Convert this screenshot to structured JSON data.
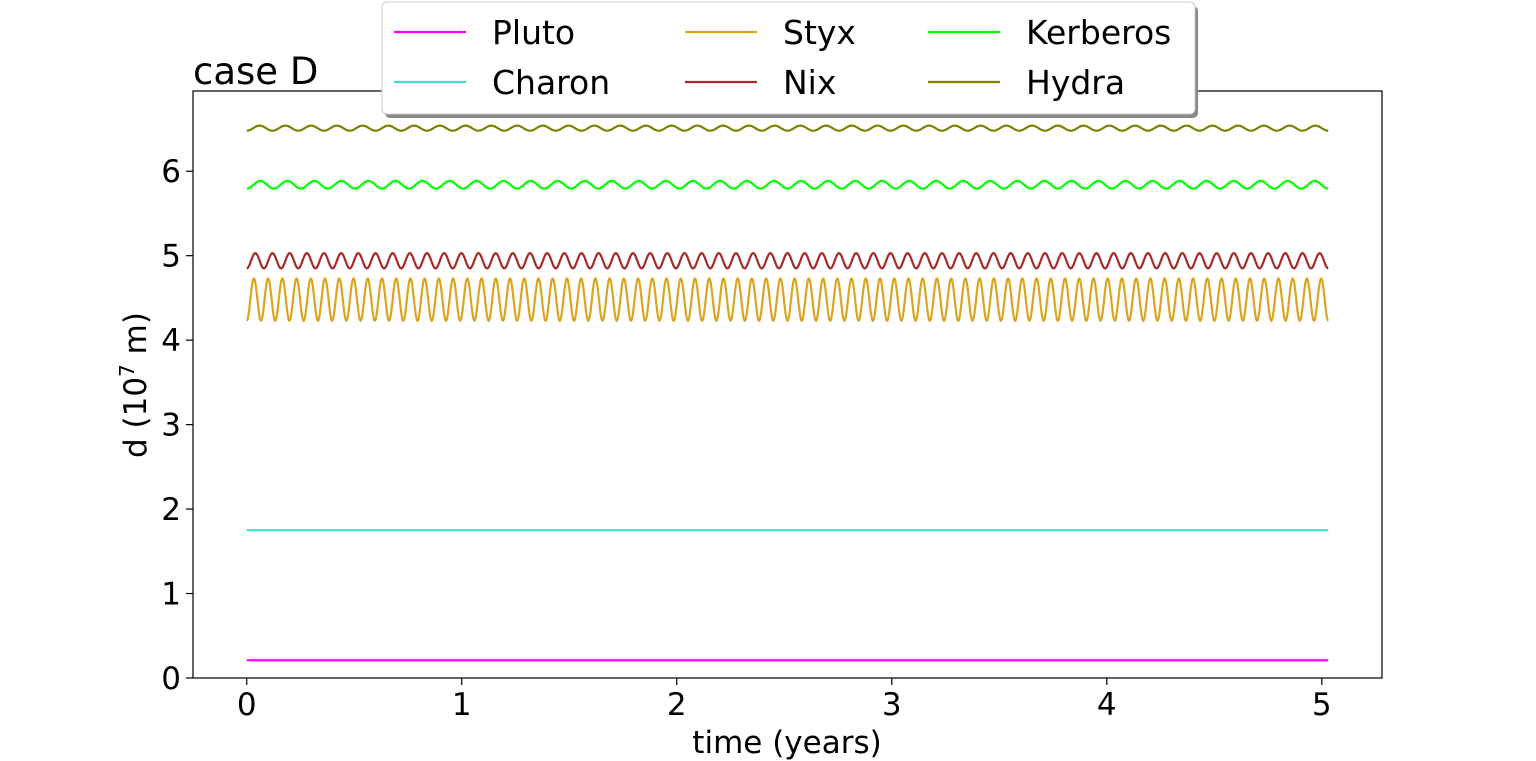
{
  "chart_data": {
    "type": "line",
    "title": "case D",
    "xlabel": "time (years)",
    "ylabel_prefix": "d (10",
    "ylabel_exp": "7",
    "ylabel_suffix": " m)",
    "xlim": [
      -0.25,
      5.28
    ],
    "ylim": [
      0,
      6.95
    ],
    "xticks": [
      0,
      1,
      2,
      3,
      4,
      5
    ],
    "yticks": [
      0,
      1,
      2,
      3,
      4,
      5,
      6
    ],
    "grid": false,
    "legend_position": "top-center",
    "x_range": [
      0,
      5.03
    ],
    "series": [
      {
        "name": "Pluto",
        "color": "#ff00ff",
        "mean": 0.21,
        "amplitude": 0.0,
        "cycles": 0
      },
      {
        "name": "Charon",
        "color": "#40e0d0",
        "mean": 1.75,
        "amplitude": 0.0,
        "cycles": 0
      },
      {
        "name": "Styx",
        "color": "#daa520",
        "mean": 4.48,
        "amplitude": 0.25,
        "cycles": 76
      },
      {
        "name": "Nix",
        "color": "#a52a2a",
        "mean": 4.94,
        "amplitude": 0.09,
        "cycles": 63
      },
      {
        "name": "Kerberos",
        "color": "#00ff00",
        "mean": 5.84,
        "amplitude": 0.045,
        "cycles": 40
      },
      {
        "name": "Hydra",
        "color": "#808000",
        "mean": 6.51,
        "amplitude": 0.03,
        "cycles": 42
      }
    ]
  }
}
